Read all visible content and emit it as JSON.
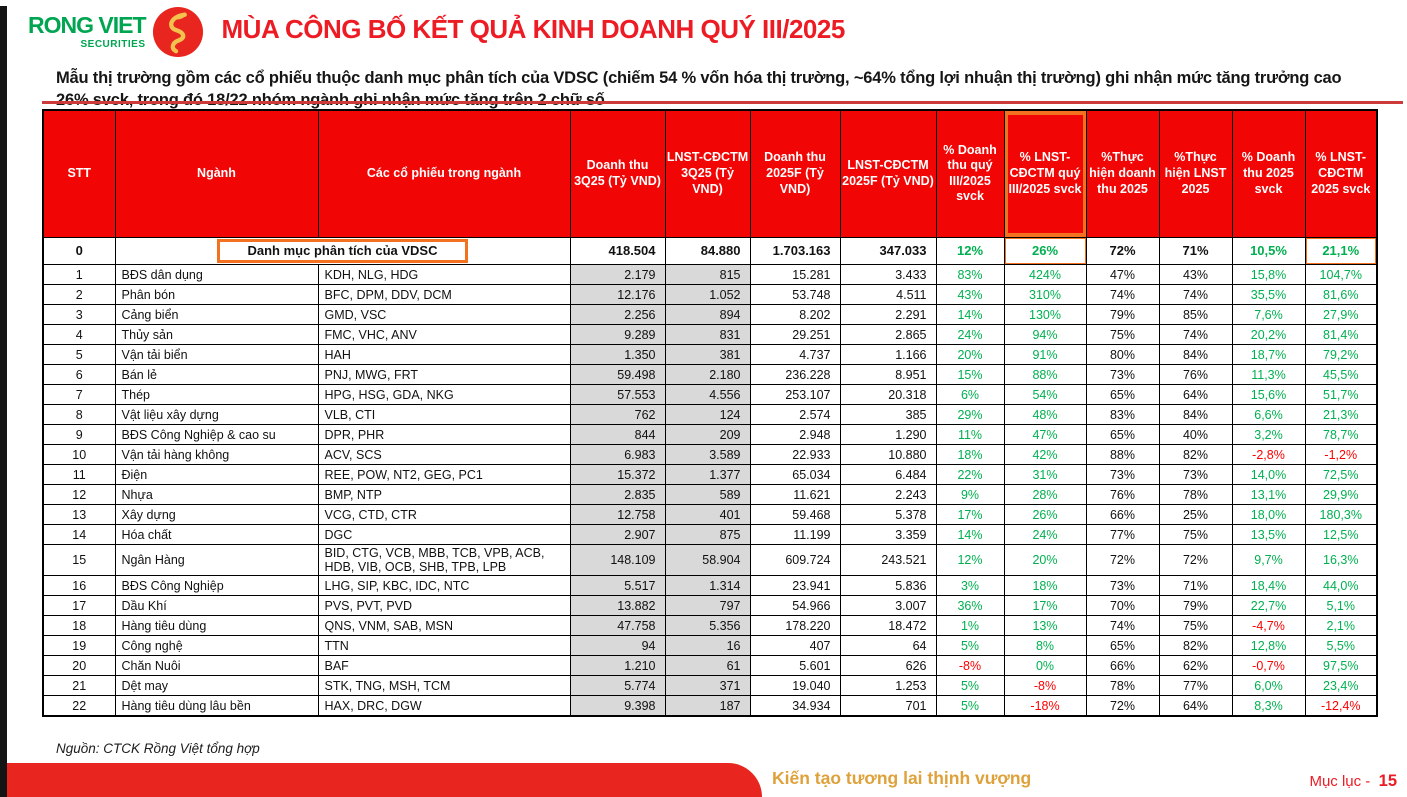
{
  "brand": {
    "name": "RONG VIET",
    "sub": "SECURITIES"
  },
  "header": {
    "title": "MÙA CÔNG BỐ KẾT QUẢ KINH DOANH QUÝ III/2025",
    "subtitle": "Mẫu thị trường gồm các cổ phiếu thuộc danh mục phân tích của VDSC (chiếm 54 % vốn hóa thị trường, ~64% tổng lợi nhuận thị trường) ghi nhận mức tăng trưởng cao 26% svck, trong đó 18/22 nhóm ngành ghi nhận mức tăng trên 2 chữ số"
  },
  "table": {
    "columns": [
      "STT",
      "Ngành",
      "Các cổ phiếu trong ngành",
      "Doanh thu 3Q25 (Tỷ VND)",
      "LNST-CĐCTM 3Q25 (Tỷ VND)",
      "Doanh thu 2025F (Tỷ VND)",
      "LNST-CĐCTM 2025F (Tỷ VND)",
      "% Doanh thu quý III/2025 svck",
      "% LNST-CĐCTM quý III/2025 svck",
      "%Thực hiện doanh thu 2025",
      "%Thực hiện LNST 2025",
      "% Doanh thu 2025 svck",
      "% LNST-CĐCTM 2025 svck"
    ],
    "highlight": {
      "header_col": 8,
      "summary_green": [
        4,
        5,
        8,
        9
      ],
      "summary_boxed": [
        5,
        9
      ]
    },
    "summary_row": {
      "stt": "0",
      "label": "Danh mục phân tích của VDSC",
      "values": [
        "418.504",
        "84.880",
        "1.703.163",
        "347.033",
        "12%",
        "26%",
        "72%",
        "71%",
        "10,5%",
        "21,1%"
      ]
    },
    "rows": [
      [
        "1",
        "BĐS dân dụng",
        "KDH, NLG, HDG",
        "2.179",
        "815",
        "15.281",
        "3.433",
        "83%",
        "424%",
        "47%",
        "43%",
        "15,8%",
        "104,7%"
      ],
      [
        "2",
        "Phân bón",
        "BFC, DPM, DDV, DCM",
        "12.176",
        "1.052",
        "53.748",
        "4.511",
        "43%",
        "310%",
        "74%",
        "74%",
        "35,5%",
        "81,6%"
      ],
      [
        "3",
        "Cảng biển",
        "GMD, VSC",
        "2.256",
        "894",
        "8.202",
        "2.291",
        "14%",
        "130%",
        "79%",
        "85%",
        "7,6%",
        "27,9%"
      ],
      [
        "4",
        "Thủy sản",
        "FMC, VHC, ANV",
        "9.289",
        "831",
        "29.251",
        "2.865",
        "24%",
        "94%",
        "75%",
        "74%",
        "20,2%",
        "81,4%"
      ],
      [
        "5",
        "Vận tải biển",
        "HAH",
        "1.350",
        "381",
        "4.737",
        "1.166",
        "20%",
        "91%",
        "80%",
        "84%",
        "18,7%",
        "79,2%"
      ],
      [
        "6",
        "Bán lẻ",
        "PNJ, MWG, FRT",
        "59.498",
        "2.180",
        "236.228",
        "8.951",
        "15%",
        "88%",
        "73%",
        "76%",
        "11,3%",
        "45,5%"
      ],
      [
        "7",
        "Thép",
        "HPG, HSG, GDA, NKG",
        "57.553",
        "4.556",
        "253.107",
        "20.318",
        "6%",
        "54%",
        "65%",
        "64%",
        "15,6%",
        "51,7%"
      ],
      [
        "8",
        "Vật liệu xây dựng",
        "VLB, CTI",
        "762",
        "124",
        "2.574",
        "385",
        "29%",
        "48%",
        "83%",
        "84%",
        "6,6%",
        "21,3%"
      ],
      [
        "9",
        "BĐS Công Nghiệp & cao su",
        "DPR, PHR",
        "844",
        "209",
        "2.948",
        "1.290",
        "11%",
        "47%",
        "65%",
        "40%",
        "3,2%",
        "78,7%"
      ],
      [
        "10",
        "Vận tải hàng không",
        "ACV, SCS",
        "6.983",
        "3.589",
        "22.933",
        "10.880",
        "18%",
        "42%",
        "88%",
        "82%",
        "-2,8%",
        "-1,2%"
      ],
      [
        "11",
        "Điện",
        "REE, POW, NT2, GEG, PC1",
        "15.372",
        "1.377",
        "65.034",
        "6.484",
        "22%",
        "31%",
        "73%",
        "73%",
        "14,0%",
        "72,5%"
      ],
      [
        "12",
        "Nhựa",
        "BMP, NTP",
        "2.835",
        "589",
        "11.621",
        "2.243",
        "9%",
        "28%",
        "76%",
        "78%",
        "13,1%",
        "29,9%"
      ],
      [
        "13",
        "Xây dựng",
        "VCG, CTD, CTR",
        "12.758",
        "401",
        "59.468",
        "5.378",
        "17%",
        "26%",
        "66%",
        "25%",
        "18,0%",
        "180,3%"
      ],
      [
        "14",
        "Hóa chất",
        "DGC",
        "2.907",
        "875",
        "11.199",
        "3.359",
        "14%",
        "24%",
        "77%",
        "75%",
        "13,5%",
        "12,5%"
      ],
      [
        "15",
        "Ngân Hàng",
        "BID, CTG, VCB, MBB, TCB, VPB, ACB, HDB, VIB, OCB, SHB, TPB, LPB",
        "148.109",
        "58.904",
        "609.724",
        "243.521",
        "12%",
        "20%",
        "72%",
        "72%",
        "9,7%",
        "16,3%"
      ],
      [
        "16",
        "BĐS Công Nghiệp",
        "LHG, SIP, KBC, IDC, NTC",
        "5.517",
        "1.314",
        "23.941",
        "5.836",
        "3%",
        "18%",
        "73%",
        "71%",
        "18,4%",
        "44,0%"
      ],
      [
        "17",
        "Dầu Khí",
        "PVS, PVT, PVD",
        "13.882",
        "797",
        "54.966",
        "3.007",
        "36%",
        "17%",
        "70%",
        "79%",
        "22,7%",
        "5,1%"
      ],
      [
        "18",
        "Hàng tiêu dùng",
        "QNS, VNM, SAB, MSN",
        "47.758",
        "5.356",
        "178.220",
        "18.472",
        "1%",
        "13%",
        "74%",
        "75%",
        "-4,7%",
        "2,1%"
      ],
      [
        "19",
        "Công nghệ",
        "TTN",
        "94",
        "16",
        "407",
        "64",
        "5%",
        "8%",
        "65%",
        "82%",
        "12,8%",
        "5,5%"
      ],
      [
        "20",
        "Chăn Nuôi",
        "BAF",
        "1.210",
        "61",
        "5.601",
        "626",
        "-8%",
        "0%",
        "66%",
        "62%",
        "-0,7%",
        "97,5%"
      ],
      [
        "21",
        "Dệt may",
        "STK, TNG, MSH, TCM",
        "5.774",
        "371",
        "19.040",
        "1.253",
        "5%",
        "-8%",
        "78%",
        "77%",
        "6,0%",
        "23,4%"
      ],
      [
        "22",
        "Hàng tiêu dùng lâu bền",
        "HAX, DRC, DGW",
        "9.398",
        "187",
        "34.934",
        "701",
        "5%",
        "-18%",
        "72%",
        "64%",
        "8,3%",
        "-12,4%"
      ]
    ]
  },
  "footer": {
    "source": "Nguồn: CTCK Rồng Việt tổng hợp",
    "slogan": "Kiến tạo tương lai thịnh vượng",
    "page_label": "Mục lục -",
    "page_number": "15"
  },
  "colors": {
    "brand_red": "#ED1C24",
    "table_header_red": "#F20505",
    "positive_green": "#00B050",
    "negative_red": "#FF0000",
    "gray_cell": "#D9D9D9",
    "highlight_orange": "#F4711F",
    "brand_green": "#00A551",
    "slogan_gold": "#DFA23B"
  }
}
